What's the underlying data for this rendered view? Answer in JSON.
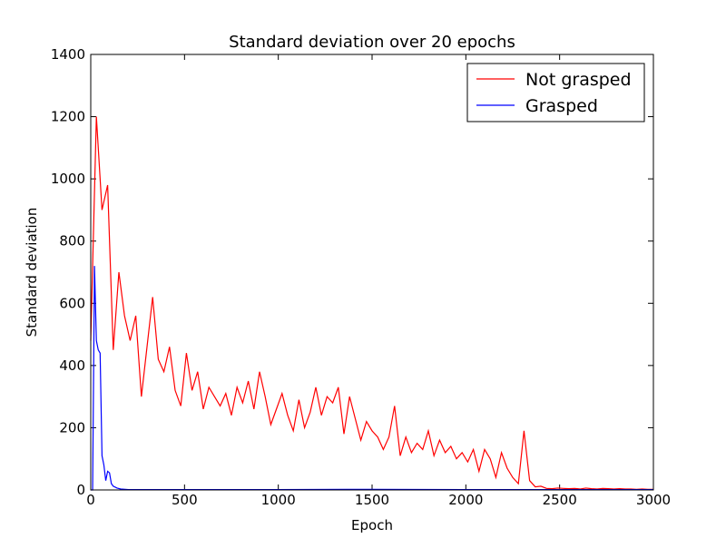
{
  "chart_data": {
    "type": "line",
    "title": "Standard deviation over 20 epochs",
    "xlabel": "Epoch",
    "ylabel": "Standard deviation",
    "xlim": [
      0,
      3000
    ],
    "ylim": [
      0,
      1400
    ],
    "xticks": [
      0,
      500,
      1000,
      1500,
      2000,
      2500,
      3000
    ],
    "yticks": [
      0,
      200,
      400,
      600,
      800,
      1000,
      1200,
      1400
    ],
    "legend": "upper right",
    "series": [
      {
        "name": "Not grasped",
        "color": "#ff0000",
        "x": [
          0,
          30,
          60,
          90,
          120,
          150,
          180,
          210,
          240,
          270,
          300,
          330,
          360,
          390,
          420,
          450,
          480,
          510,
          540,
          570,
          600,
          630,
          660,
          690,
          720,
          750,
          780,
          810,
          840,
          870,
          900,
          930,
          960,
          990,
          1020,
          1050,
          1080,
          1110,
          1140,
          1170,
          1200,
          1230,
          1260,
          1290,
          1320,
          1350,
          1380,
          1410,
          1440,
          1470,
          1500,
          1530,
          1560,
          1590,
          1620,
          1650,
          1680,
          1710,
          1740,
          1770,
          1800,
          1830,
          1860,
          1890,
          1920,
          1950,
          1980,
          2010,
          2040,
          2070,
          2100,
          2130,
          2160,
          2190,
          2220,
          2250,
          2280,
          2310,
          2340,
          2370,
          2400,
          2430,
          2460,
          2490,
          2520,
          2550,
          2580,
          2610,
          2640,
          2670,
          2700,
          2730,
          2760,
          2790,
          2820,
          2850,
          2880,
          2910,
          2940,
          2970,
          3000
        ],
        "values": [
          480,
          1200,
          900,
          980,
          450,
          700,
          560,
          480,
          560,
          300,
          460,
          620,
          420,
          380,
          460,
          320,
          270,
          440,
          320,
          380,
          260,
          330,
          300,
          270,
          310,
          240,
          330,
          280,
          350,
          260,
          380,
          300,
          210,
          260,
          310,
          240,
          190,
          290,
          200,
          250,
          330,
          240,
          300,
          280,
          330,
          180,
          300,
          230,
          160,
          220,
          190,
          170,
          130,
          170,
          270,
          110,
          170,
          120,
          150,
          130,
          190,
          110,
          160,
          120,
          140,
          100,
          120,
          90,
          130,
          60,
          130,
          100,
          40,
          120,
          70,
          40,
          20,
          190,
          30,
          10,
          12,
          5,
          4,
          6,
          5,
          4,
          5,
          3,
          6,
          4,
          3,
          5,
          4,
          3,
          4,
          3,
          3,
          2,
          3,
          2,
          2
        ]
      },
      {
        "name": "Grasped",
        "color": "#0000ff",
        "x": [
          0,
          10,
          20,
          30,
          40,
          50,
          60,
          70,
          80,
          90,
          100,
          110,
          120,
          140,
          160,
          200,
          500,
          1000,
          1500,
          2000,
          2500,
          3000
        ],
        "values": [
          0,
          0,
          720,
          480,
          450,
          440,
          110,
          80,
          30,
          60,
          55,
          20,
          12,
          6,
          3,
          1,
          1,
          1,
          2,
          1,
          1,
          1
        ]
      }
    ]
  }
}
